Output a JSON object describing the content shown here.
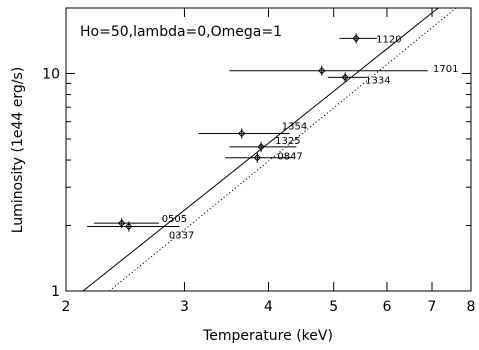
{
  "chart_data": {
    "type": "scatter",
    "title": "",
    "annotation": "Ho=50,lambda=0,Omega=1",
    "xlabel": "Temperature (keV)",
    "ylabel": "Luminosity (1e44 erg/s)",
    "x_scale": "log",
    "y_scale": "log",
    "xlim": [
      2,
      8
    ],
    "ylim": [
      1,
      20
    ],
    "x_ticks": [
      2,
      3,
      4,
      5,
      6,
      7,
      8
    ],
    "y_ticks": [
      1,
      10
    ],
    "grid": false,
    "legend": "none",
    "points": [
      {
        "name": "1120",
        "x": 5.4,
        "y": 14.5,
        "x_err": [
          5.1,
          5.8
        ]
      },
      {
        "name": "1701",
        "x": 4.8,
        "y": 10.3,
        "x_err": [
          3.5,
          6.9
        ]
      },
      {
        "name": "1334",
        "x": 5.2,
        "y": 9.6,
        "x_err": [
          4.9,
          5.6
        ]
      },
      {
        "name": "1354",
        "x": 3.65,
        "y": 5.3,
        "x_err": [
          3.15,
          4.3
        ]
      },
      {
        "name": "1325",
        "x": 3.9,
        "y": 4.6,
        "x_err": [
          3.5,
          4.4
        ]
      },
      {
        "name": "0847",
        "x": 3.85,
        "y": 4.1,
        "x_err": [
          3.45,
          4.35
        ]
      },
      {
        "name": "0505",
        "x": 2.42,
        "y": 2.05,
        "x_err": [
          2.2,
          2.75
        ]
      },
      {
        "name": "0337",
        "x": 2.48,
        "y": 1.98,
        "x_err": [
          2.15,
          2.95
        ]
      }
    ],
    "fits": [
      {
        "style": "solid",
        "x": [
          2.12,
          7.15
        ],
        "y": [
          1.0,
          20.0
        ]
      },
      {
        "style": "dotted",
        "x": [
          2.32,
          7.6
        ],
        "y": [
          1.0,
          20.0
        ]
      }
    ]
  }
}
